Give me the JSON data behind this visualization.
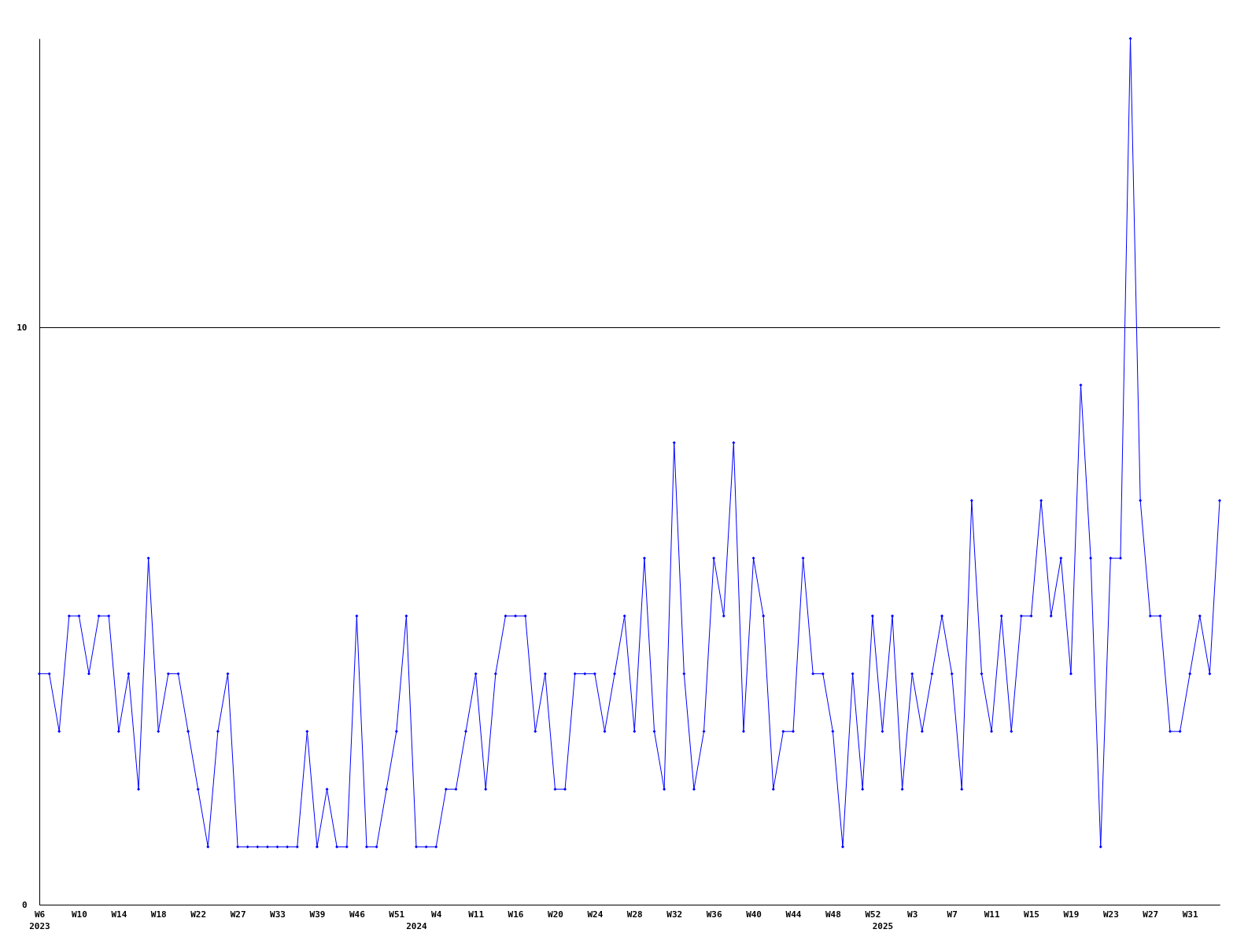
{
  "chart_data": {
    "type": "line",
    "categories": [
      "W6\n2023",
      null,
      null,
      null,
      "W10",
      null,
      null,
      null,
      "W14",
      null,
      null,
      null,
      "W18",
      null,
      null,
      null,
      "W22",
      null,
      null,
      null,
      "W27",
      null,
      null,
      null,
      "W33",
      null,
      null,
      null,
      "W39",
      null,
      null,
      null,
      "W46",
      null,
      null,
      null,
      "W51",
      null,
      "\n2024",
      null,
      "W4",
      null,
      null,
      null,
      "W11",
      null,
      null,
      null,
      "W16",
      null,
      null,
      null,
      "W20",
      null,
      null,
      null,
      "W24",
      null,
      null,
      null,
      "W28",
      null,
      null,
      null,
      "W32",
      null,
      null,
      null,
      "W36",
      null,
      null,
      null,
      "W40",
      null,
      null,
      null,
      "W44",
      null,
      null,
      null,
      "W48",
      null,
      null,
      null,
      "W52",
      "\n2025",
      null,
      null,
      "W3",
      null,
      null,
      null,
      "W7",
      null,
      null,
      null,
      "W11",
      null,
      null,
      null,
      "W15",
      null,
      null,
      null,
      "W19",
      null,
      null,
      null,
      "W23",
      null,
      null,
      null,
      "W27",
      null,
      null,
      null,
      "W31",
      null,
      null,
      null
    ],
    "values": [
      4,
      4,
      3,
      5,
      5,
      4,
      5,
      5,
      3,
      4,
      2,
      6,
      3,
      4,
      4,
      3,
      2,
      1,
      3,
      4,
      1,
      1,
      1,
      1,
      1,
      1,
      1,
      3,
      1,
      2,
      1,
      1,
      5,
      1,
      1,
      2,
      3,
      5,
      1,
      1,
      1,
      2,
      2,
      3,
      4,
      2,
      4,
      5,
      5,
      5,
      3,
      4,
      2,
      2,
      4,
      4,
      4,
      3,
      4,
      5,
      3,
      6,
      3,
      2,
      8,
      4,
      2,
      3,
      6,
      5,
      8,
      3,
      6,
      5,
      2,
      3,
      3,
      6,
      4,
      4,
      3,
      1,
      4,
      2,
      5,
      3,
      5,
      2,
      4,
      3,
      4,
      5,
      4,
      2,
      7,
      4,
      3,
      5,
      3,
      5,
      5,
      7,
      5,
      6,
      4,
      9,
      6,
      1,
      6,
      6,
      15,
      7,
      5,
      5,
      3,
      3,
      4,
      5,
      4,
      7
    ],
    "color": "#0000ff",
    "ylim": [
      0,
      15
    ],
    "yticks": [
      0,
      10
    ],
    "grid": "y",
    "marker": "diamond",
    "line_style": "solid"
  }
}
